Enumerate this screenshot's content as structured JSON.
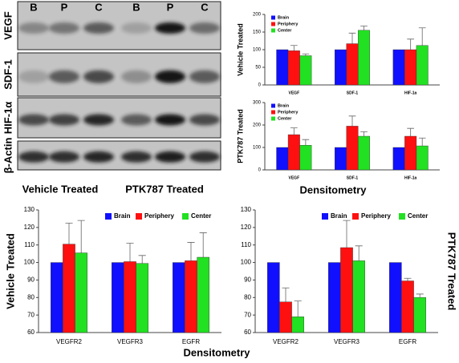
{
  "blot": {
    "lanes": [
      "B",
      "P",
      "C",
      "B",
      "P",
      "C"
    ],
    "rows": [
      "VEGF",
      "SDF-1",
      "HIF-1α",
      "β-Actin"
    ],
    "groups": [
      "Vehicle Treated",
      "PTK787 Treated"
    ]
  },
  "captions": {
    "top": "Densitometry",
    "bottom": "Densitometry"
  },
  "chart_data": [
    {
      "type": "bar",
      "ylabel": "Vehicle Treated",
      "categories": [
        "VEGF",
        "SDF-1",
        "HIF-1a"
      ],
      "ylim": [
        0,
        200
      ],
      "yticks": [
        0,
        50,
        100,
        150,
        200
      ],
      "legend": "upper left",
      "series": [
        {
          "name": "Brain",
          "color": "#1010ff",
          "values": [
            100,
            100,
            100
          ]
        },
        {
          "name": "Periphery",
          "color": "#ff1010",
          "values": [
            97,
            117,
            100
          ],
          "errors": [
            15,
            30,
            30
          ]
        },
        {
          "name": "Center",
          "color": "#22e022",
          "values": [
            83,
            155,
            112
          ],
          "errors": [
            5,
            12,
            50
          ]
        }
      ]
    },
    {
      "type": "bar",
      "ylabel": "PTK787 Treated",
      "categories": [
        "VEGF",
        "SDF-1",
        "HIF-1a"
      ],
      "ylim": [
        0,
        300
      ],
      "yticks": [
        0,
        100,
        200,
        300
      ],
      "legend": "upper left",
      "series": [
        {
          "name": "Brain",
          "color": "#1010ff",
          "values": [
            100,
            100,
            100
          ]
        },
        {
          "name": "Periphery",
          "color": "#ff1010",
          "values": [
            157,
            195,
            150
          ],
          "errors": [
            30,
            45,
            35
          ]
        },
        {
          "name": "Center",
          "color": "#22e022",
          "values": [
            110,
            150,
            107
          ],
          "errors": [
            25,
            20,
            35
          ]
        }
      ]
    },
    {
      "type": "bar",
      "ylabel": "Vehicle Treated",
      "categories": [
        "VEGFR2",
        "VEGFR3",
        "EGFR"
      ],
      "ylim": [
        60,
        130
      ],
      "yticks": [
        60,
        70,
        80,
        90,
        100,
        110,
        120,
        130
      ],
      "legend": "upper right",
      "series": [
        {
          "name": "Brain",
          "color": "#1010ff",
          "values": [
            100,
            100,
            100
          ]
        },
        {
          "name": "Periphery",
          "color": "#ff1010",
          "values": [
            110.5,
            100.5,
            101
          ],
          "errors": [
            12,
            10.5,
            10.5
          ]
        },
        {
          "name": "Center",
          "color": "#22e022",
          "values": [
            105.5,
            99.5,
            103
          ],
          "errors": [
            18.5,
            4.5,
            14
          ]
        }
      ]
    },
    {
      "type": "bar",
      "ylabel": "PTK787 Treated",
      "categories": [
        "VEGFR2",
        "VEGFR3",
        "EGFR"
      ],
      "ylim": [
        60,
        130
      ],
      "yticks": [
        60,
        70,
        80,
        90,
        100,
        110,
        120,
        130
      ],
      "legend": "upper right",
      "series": [
        {
          "name": "Brain",
          "color": "#1010ff",
          "values": [
            100,
            100,
            100
          ]
        },
        {
          "name": "Periphery",
          "color": "#ff1010",
          "values": [
            77.5,
            108.5,
            89.5
          ],
          "errors": [
            8,
            15.5,
            1.5
          ]
        },
        {
          "name": "Center",
          "color": "#22e022",
          "values": [
            69,
            101,
            80
          ],
          "errors": [
            9,
            8.5,
            2
          ]
        }
      ]
    }
  ]
}
